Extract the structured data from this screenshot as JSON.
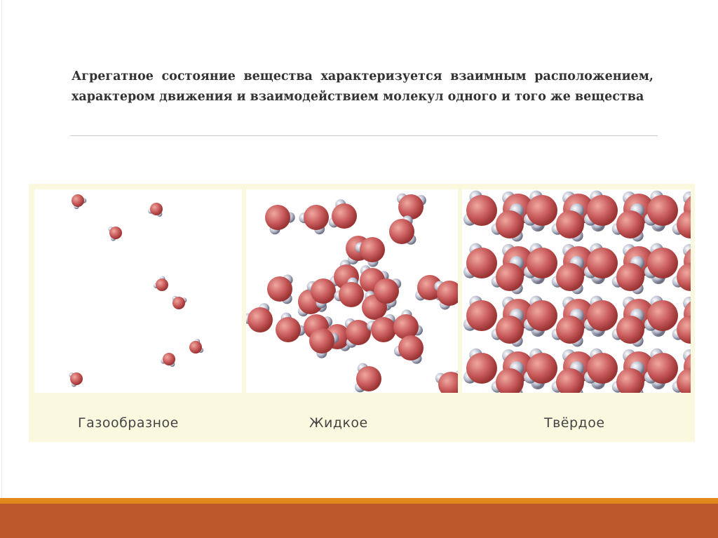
{
  "slide": {
    "title": "Агрегатное состояние вещества характеризуется взаимным расположением, характером движения и взаимодействием молекул одного и того же вещества"
  },
  "figure": {
    "panels": [
      {
        "label": "Газообразное"
      },
      {
        "label": "Жидкое"
      },
      {
        "label": "Твёрдое"
      }
    ]
  },
  "colors": {
    "oxygen": "#c85a5a",
    "hydrogen": "#c8ccd8",
    "accent_band": "#e08818",
    "footer_band": "#bc582c",
    "figure_bg": "#fbf8e0"
  }
}
